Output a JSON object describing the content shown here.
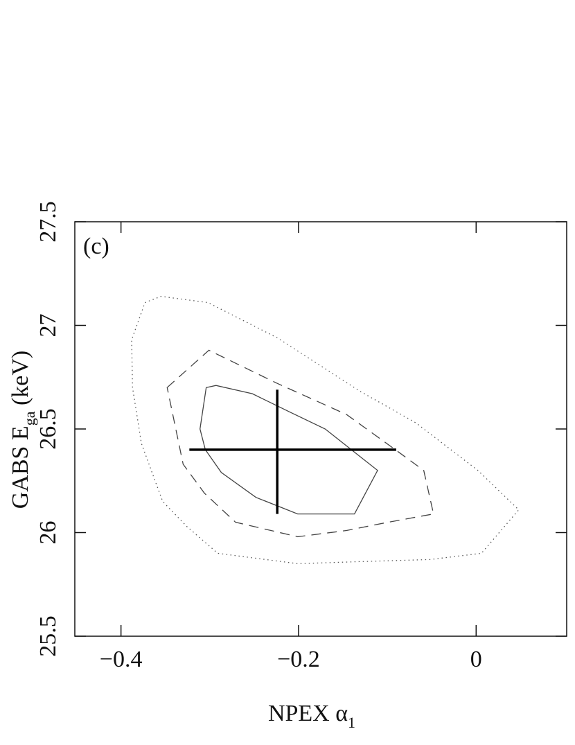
{
  "chart_data": {
    "type": "contour",
    "annotation": "(c)",
    "xlabel": [
      "NPEX α",
      "1"
    ],
    "ylabel": [
      "GABS E",
      "ga",
      " (keV)"
    ],
    "xlim": [
      -0.452,
      0.102
    ],
    "ylim": [
      25.5,
      27.5
    ],
    "xticks": [
      {
        "value": -0.4,
        "label": "−0.4"
      },
      {
        "value": -0.2,
        "label": "−0.2"
      },
      0
    ],
    "yticks": [
      25.5,
      26,
      26.5,
      27,
      27.5
    ],
    "series": [
      {
        "style": "dotted",
        "color": "#555555",
        "x": [
          -0.373,
          -0.355,
          -0.302,
          -0.224,
          -0.13,
          -0.068,
          0.002,
          0.048,
          0.006,
          -0.052,
          -0.13,
          -0.201,
          -0.291,
          -0.326,
          -0.353,
          -0.377,
          -0.387,
          -0.388
        ],
        "y": [
          27.11,
          27.14,
          27.11,
          26.94,
          26.68,
          26.53,
          26.3,
          26.11,
          25.9,
          25.87,
          25.86,
          25.85,
          25.9,
          26.03,
          26.15,
          26.43,
          26.7,
          26.93
        ]
      },
      {
        "style": "dashed",
        "color": "#444444",
        "x": [
          -0.348,
          -0.301,
          -0.224,
          -0.146,
          -0.091,
          -0.059,
          -0.048,
          -0.099,
          -0.146,
          -0.201,
          -0.271,
          -0.306,
          -0.33
        ],
        "y": [
          26.7,
          26.88,
          26.72,
          26.57,
          26.4,
          26.3,
          26.09,
          26.05,
          26.01,
          25.98,
          26.05,
          26.19,
          26.33
        ]
      },
      {
        "style": "solid",
        "color": "#444444",
        "x": [
          -0.304,
          -0.293,
          -0.252,
          -0.209,
          -0.17,
          -0.111,
          -0.137,
          -0.17,
          -0.201,
          -0.248,
          -0.287,
          -0.305,
          -0.311
        ],
        "y": [
          26.7,
          26.71,
          26.67,
          26.58,
          26.5,
          26.3,
          26.09,
          26.09,
          26.09,
          26.17,
          26.29,
          26.4,
          26.5
        ]
      }
    ],
    "best_fit": {
      "x": -0.224,
      "y": 26.4,
      "x_low": -0.323,
      "x_high": -0.09,
      "y_low": 26.09,
      "y_high": 26.69
    }
  }
}
